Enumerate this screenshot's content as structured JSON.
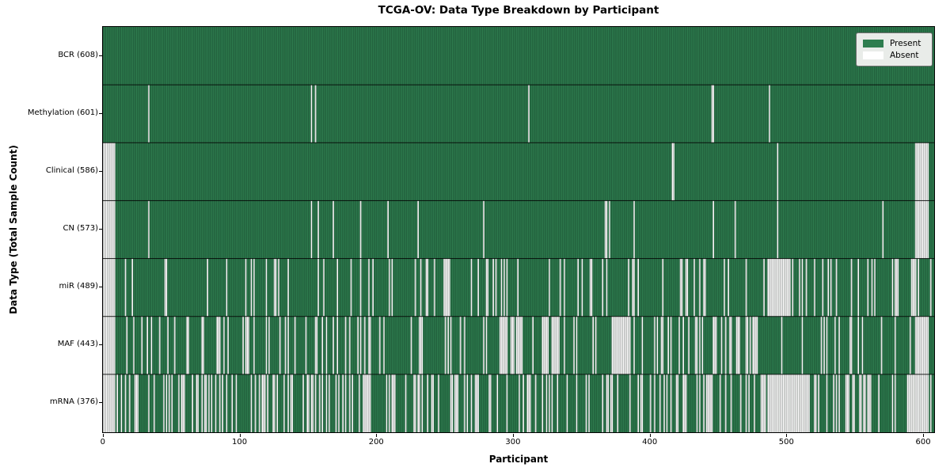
{
  "title": "TCGA-OV: Data Type Breakdown by Participant",
  "xlabel": "Participant",
  "ylabel": "Data Type (Total Sample Count)",
  "legend": {
    "present_label": "Present",
    "absent_label": "Absent"
  },
  "colors": {
    "present": "#2e7d4f",
    "present_edge": "rgba(10,35,22,0.55)",
    "absent": "#ffffff",
    "absent_edge": "rgba(128,128,128,0.9)",
    "row_divider": "rgba(0,0,0,0.85)",
    "legend_bg": "#e9ece9"
  },
  "chart_data": {
    "type": "heatmap",
    "title": "TCGA-OV: Data Type Breakdown by Participant",
    "xlabel": "Participant",
    "ylabel": "Data Type (Total Sample Count)",
    "legend": [
      "Present",
      "Absent"
    ],
    "legend_position": "upper right",
    "n_participants": 608,
    "x_ticks": [
      0,
      100,
      200,
      300,
      400,
      500,
      600
    ],
    "x_range": [
      0,
      608
    ],
    "rows": [
      {
        "label": "BCR (608)",
        "name": "BCR",
        "present_count": 608,
        "absent_count": 0,
        "absent_clusters": []
      },
      {
        "label": "Methylation (601)",
        "name": "Methylation",
        "present_count": 601,
        "absent_count": 7,
        "absent_clusters": [
          [
            33,
            1
          ],
          [
            152,
            1
          ],
          [
            155,
            1
          ],
          [
            311,
            1
          ],
          [
            445,
            2
          ],
          [
            487,
            1
          ]
        ]
      },
      {
        "label": "Clinical (586)",
        "name": "Clinical",
        "present_count": 586,
        "absent_count": 22,
        "absent_clusters": [
          [
            0,
            9
          ],
          [
            416,
            2
          ],
          [
            493,
            1
          ],
          [
            594,
            10
          ]
        ]
      },
      {
        "label": "CN (573)",
        "name": "CN",
        "present_count": 573,
        "absent_count": 35,
        "absent_clusters": [
          [
            0,
            9
          ],
          [
            33,
            1
          ],
          [
            152,
            1
          ],
          [
            157,
            1
          ],
          [
            168,
            1
          ],
          [
            188,
            1
          ],
          [
            208,
            1
          ],
          [
            230,
            1
          ],
          [
            278,
            1
          ],
          [
            367,
            2
          ],
          [
            370,
            1
          ],
          [
            388,
            1
          ],
          [
            446,
            1
          ],
          [
            462,
            1
          ],
          [
            493,
            1
          ],
          [
            570,
            1
          ],
          [
            594,
            10
          ]
        ]
      },
      {
        "label": "miR (489)",
        "name": "miR",
        "present_count": 489,
        "absent_count": 119,
        "absent_clusters": [
          [
            0,
            9
          ],
          [
            249,
            5
          ],
          [
            486,
            17
          ],
          [
            579,
            3
          ],
          [
            591,
            4
          ]
        ]
      },
      {
        "label": "MAF (443)",
        "name": "MAF",
        "present_count": 443,
        "absent_count": 165,
        "absent_clusters": [
          [
            0,
            9
          ],
          [
            290,
            6
          ],
          [
            298,
            2
          ],
          [
            302,
            5
          ],
          [
            321,
            5
          ],
          [
            328,
            6
          ],
          [
            372,
            14
          ],
          [
            446,
            2
          ],
          [
            458,
            2
          ],
          [
            463,
            3
          ],
          [
            470,
            2
          ],
          [
            475,
            4
          ],
          [
            546,
            2
          ],
          [
            594,
            10
          ]
        ]
      },
      {
        "label": "mRNA (376)",
        "name": "mRNA",
        "present_count": 376,
        "absent_count": 232,
        "absent_clusters": [
          [
            0,
            9
          ],
          [
            486,
            31
          ],
          [
            588,
            16
          ]
        ]
      }
    ]
  }
}
